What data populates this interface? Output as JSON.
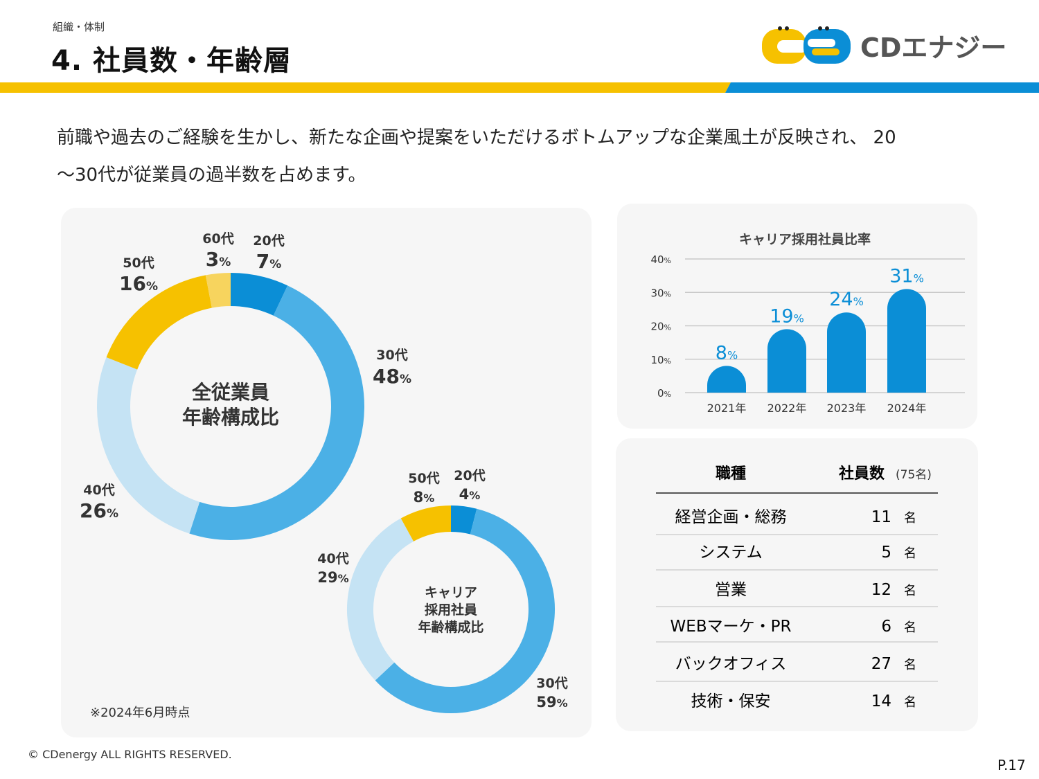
{
  "header": {
    "section_label": "組織・体制",
    "title": "4. 社員数・年齢層",
    "logo_text": "CDエナジー"
  },
  "colors": {
    "yellow": "#f6c100",
    "light_yellow": "#f7d45e",
    "dark_blue": "#0b8ed6",
    "mid_blue": "#4bb0e6",
    "light_blue": "#c5e3f4",
    "bar_blue": "#0b8ed6",
    "panel_bg": "#f6f6f6"
  },
  "intro": {
    "line1": "前職や過去のご経験を生かし、新たな企画や提案をいただけるボトムアップな企業風土が反映され、 20",
    "line2": "〜30代が従業員の過半数を占めます。"
  },
  "chart_data": [
    {
      "type": "pie",
      "title": "全従業員\n年齢構成比",
      "title_lines": [
        "全従業員",
        "年齢構成比"
      ],
      "categories": [
        "20代",
        "30代",
        "40代",
        "50代",
        "60代"
      ],
      "values": [
        7,
        48,
        26,
        16,
        3
      ],
      "unit": "%"
    },
    {
      "type": "pie",
      "title_lines": [
        "キャリア",
        "採用社員",
        "年齢構成比"
      ],
      "categories": [
        "20代",
        "30代",
        "40代",
        "50代"
      ],
      "values": [
        4,
        59,
        29,
        8
      ],
      "unit": "%"
    },
    {
      "type": "bar",
      "title": "キャリア採用社員比率",
      "categories": [
        "2021年",
        "2022年",
        "2023年",
        "2024年"
      ],
      "values": [
        8,
        19,
        24,
        31
      ],
      "unit": "%",
      "yticks": [
        "0",
        "10",
        "20",
        "30",
        "40"
      ],
      "ylim": [
        0,
        40
      ],
      "grid": true
    }
  ],
  "table": {
    "header_role": "職種",
    "header_count": "社員数",
    "header_total": "(75名)",
    "unit": "名",
    "rows": [
      {
        "role": "経営企画・総務",
        "count": "11"
      },
      {
        "role": "システム",
        "count": "5"
      },
      {
        "role": "営業",
        "count": "12"
      },
      {
        "role": "WEBマーケ・PR",
        "count": "6"
      },
      {
        "role": "バックオフィス",
        "count": "27"
      },
      {
        "role": "技術・保安",
        "count": "14"
      }
    ]
  },
  "footer": {
    "note": "※2024年6月時点",
    "copyright": "© CDenergy ALL RIGHTS RESERVED.",
    "page": "P.17"
  }
}
